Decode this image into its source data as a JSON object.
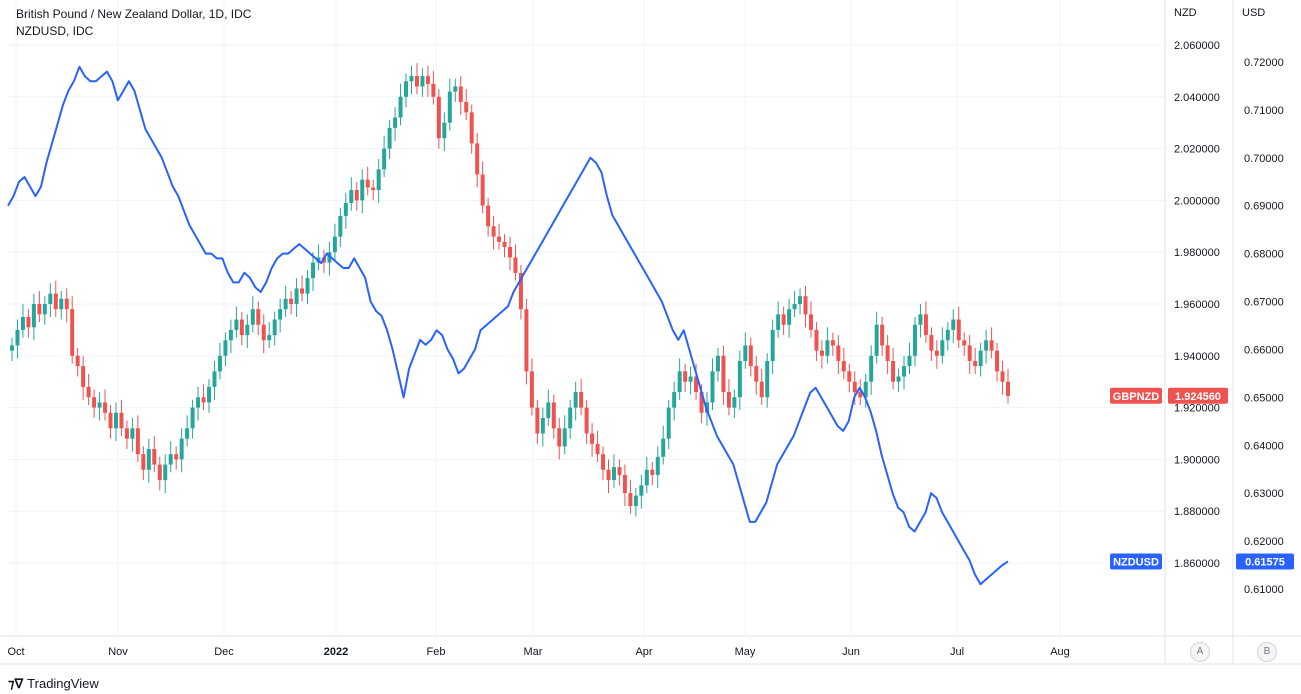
{
  "legend": {
    "line1": "British Pound / New Zealand Dollar, 1D, IDC",
    "line2": "NZDUSD, IDC"
  },
  "axes": {
    "left_title": "NZD",
    "right_title": "USD"
  },
  "scale_buttons": {
    "a": "A",
    "b": "B"
  },
  "branding": {
    "logo_text": "TradingView"
  },
  "colors": {
    "up": "#26a69a",
    "down": "#ef5350",
    "line": "#2962ff",
    "grid": "#f0f3fa",
    "text": "#131722"
  },
  "chart_data": {
    "type": "candlestick+line",
    "x_labels": [
      "Oct",
      "Nov",
      "Dec",
      "2022",
      "Feb",
      "Mar",
      "Apr",
      "May",
      "Jun",
      "Jul",
      "Aug"
    ],
    "nzd_axis": {
      "range": [
        1.85,
        2.07
      ],
      "ticks": [
        "2.060000",
        "2.040000",
        "2.020000",
        "2.000000",
        "1.980000",
        "1.960000",
        "1.940000",
        "1.920000",
        "1.900000",
        "1.880000",
        "1.860000"
      ]
    },
    "usd_axis": {
      "range": [
        0.6025,
        0.7245
      ],
      "ticks": [
        "0.72000",
        "0.71000",
        "0.70000",
        "0.69000",
        "0.68000",
        "0.67000",
        "0.66000",
        "0.65000",
        "0.64000",
        "0.63000",
        "0.62000",
        "0.61000"
      ]
    },
    "gbpnzd": {
      "name": "GBPNZD",
      "last": "1.924560",
      "closes": [
        1.944,
        1.95,
        1.955,
        1.951,
        1.96,
        1.956,
        1.96,
        1.964,
        1.958,
        1.962,
        1.958,
        1.94,
        1.936,
        1.928,
        1.924,
        1.92,
        1.922,
        1.918,
        1.912,
        1.918,
        1.912,
        1.908,
        1.912,
        1.902,
        1.896,
        1.904,
        1.898,
        1.892,
        1.898,
        1.902,
        1.9,
        1.908,
        1.912,
        1.92,
        1.924,
        1.922,
        1.928,
        1.934,
        1.94,
        1.946,
        1.95,
        1.954,
        1.948,
        1.952,
        1.958,
        1.952,
        1.946,
        1.948,
        1.954,
        1.958,
        1.962,
        1.96,
        1.966,
        1.964,
        1.97,
        1.976,
        1.978,
        1.976,
        1.98,
        1.986,
        1.994,
        1.999,
        2.004,
        2.0,
        2.008,
        2.005,
        2.004,
        2.012,
        2.02,
        2.028,
        2.032,
        2.04,
        2.046,
        2.048,
        2.044,
        2.048,
        2.045,
        2.04,
        2.024,
        2.03,
        2.042,
        2.044,
        2.038,
        2.034,
        2.022,
        2.01,
        1.998,
        1.99,
        1.986,
        1.984,
        1.982,
        1.978,
        1.972,
        1.958,
        1.934,
        1.92,
        1.91,
        1.916,
        1.922,
        1.912,
        1.905,
        1.912,
        1.92,
        1.926,
        1.92,
        1.91,
        1.906,
        1.902,
        1.896,
        1.892,
        1.897,
        1.894,
        1.887,
        1.882,
        1.886,
        1.89,
        1.896,
        1.894,
        1.901,
        1.908,
        1.92,
        1.926,
        1.934,
        1.93,
        1.932,
        1.926,
        1.918,
        1.922,
        1.934,
        1.94,
        1.926,
        1.92,
        1.924,
        1.938,
        1.944,
        1.936,
        1.93,
        1.924,
        1.938,
        1.95,
        1.956,
        1.952,
        1.958,
        1.96,
        1.963,
        1.956,
        1.95,
        1.942,
        1.94,
        1.946,
        1.944,
        1.938,
        1.934,
        1.93,
        1.926,
        1.924,
        1.93,
        1.94,
        1.952,
        1.944,
        1.938,
        1.93,
        1.932,
        1.936,
        1.94,
        1.952,
        1.956,
        1.948,
        1.942,
        1.94,
        1.946,
        1.95,
        1.954,
        1.946,
        1.944,
        1.938,
        1.936,
        1.942,
        1.946,
        1.942,
        1.934,
        1.93,
        1.92456
      ]
    },
    "nzdusd": {
      "name": "NZDUSD",
      "last": "0.61575",
      "values": [
        0.69,
        0.692,
        0.695,
        0.696,
        0.694,
        0.692,
        0.694,
        0.699,
        0.703,
        0.707,
        0.711,
        0.714,
        0.716,
        0.719,
        0.717,
        0.716,
        0.716,
        0.717,
        0.718,
        0.716,
        0.712,
        0.714,
        0.716,
        0.714,
        0.71,
        0.706,
        0.704,
        0.702,
        0.7,
        0.697,
        0.694,
        0.692,
        0.689,
        0.686,
        0.684,
        0.682,
        0.68,
        0.68,
        0.679,
        0.679,
        0.676,
        0.674,
        0.674,
        0.676,
        0.675,
        0.673,
        0.672,
        0.674,
        0.677,
        0.679,
        0.68,
        0.68,
        0.681,
        0.682,
        0.681,
        0.68,
        0.679,
        0.678,
        0.68,
        0.679,
        0.678,
        0.677,
        0.677,
        0.679,
        0.677,
        0.675,
        0.67,
        0.668,
        0.667,
        0.664,
        0.66,
        0.655,
        0.65,
        0.656,
        0.659,
        0.662,
        0.661,
        0.662,
        0.664,
        0.663,
        0.66,
        0.658,
        0.655,
        0.656,
        0.658,
        0.66,
        0.664,
        0.665,
        0.666,
        0.667,
        0.668,
        0.669,
        0.672,
        0.674,
        0.676,
        0.678,
        0.68,
        0.682,
        0.684,
        0.686,
        0.688,
        0.69,
        0.692,
        0.694,
        0.696,
        0.698,
        0.7,
        0.699,
        0.697,
        0.692,
        0.688,
        0.686,
        0.684,
        0.682,
        0.68,
        0.678,
        0.676,
        0.674,
        0.672,
        0.67,
        0.667,
        0.664,
        0.662,
        0.664,
        0.66,
        0.656,
        0.652,
        0.648,
        0.645,
        0.642,
        0.64,
        0.638,
        0.636,
        0.632,
        0.628,
        0.624,
        0.624,
        0.626,
        0.628,
        0.632,
        0.636,
        0.638,
        0.64,
        0.642,
        0.645,
        0.648,
        0.651,
        0.652,
        0.65,
        0.648,
        0.646,
        0.644,
        0.643,
        0.645,
        0.65,
        0.652,
        0.65,
        0.647,
        0.643,
        0.638,
        0.634,
        0.63,
        0.627,
        0.626,
        0.623,
        0.622,
        0.624,
        0.626,
        0.63,
        0.629,
        0.626,
        0.624,
        0.622,
        0.62,
        0.618,
        0.616,
        0.613,
        0.611,
        0.612,
        0.613,
        0.614,
        0.615,
        0.61575
      ]
    },
    "grid": true
  }
}
